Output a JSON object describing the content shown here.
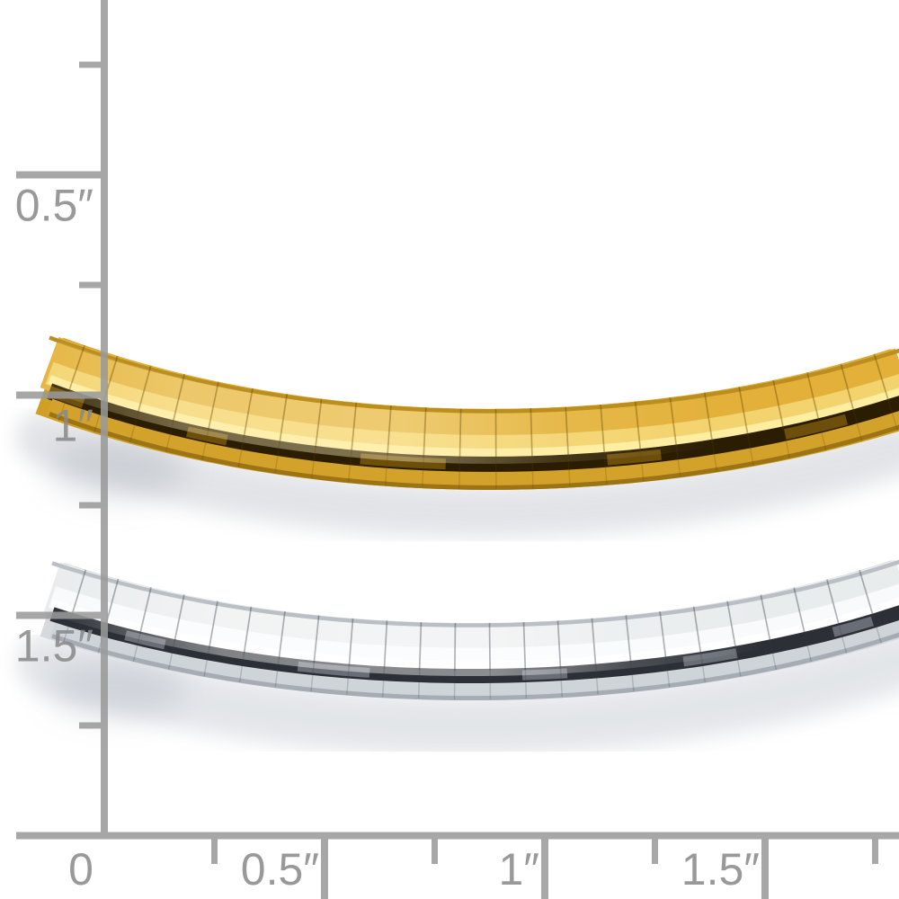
{
  "page": {
    "background": "#ffffff",
    "description": "Product photo of two omega chain necklaces (yellow gold and white gold) on a white background with a gray inch sizing ruler along the left and bottom edges."
  },
  "ruler": {
    "unit": "inches",
    "line_color": "#9a9a9a",
    "text_color": "#8a8a8a",
    "vertical_axis": {
      "labels": [
        "1.5″",
        "1″",
        "0.5″"
      ]
    },
    "horizontal_axis": {
      "labels": [
        "0",
        "0.5″",
        "1″",
        "1.5″"
      ]
    }
  },
  "chains": [
    {
      "name": "yellow-gold-omega-chain",
      "palette": {
        "base": "#cf9f26",
        "upper": "#e3b13a",
        "bright": "#f3d36e",
        "highlight": "#ffeda0",
        "dark_stripe": "#2b1d02",
        "glint": "#9a7212",
        "lower": "#d2a22b",
        "bottom_edge": "#9c7415",
        "top_edge": "#bb8e1e",
        "link_line": "#5f4200",
        "shadow": "#9aa0ac",
        "mid_glow": "#fff3c4"
      }
    },
    {
      "name": "white-gold-omega-chain",
      "palette": {
        "base": "#d6dade",
        "upper": "#e9eced",
        "bright": "#f8fafc",
        "highlight": "#ffffff",
        "dark_stripe": "#2c3036",
        "glint": "#8a9199",
        "lower": "#cfd4d9",
        "bottom_edge": "#a6acb3",
        "top_edge": "#b9bfc5",
        "link_line": "#343a44",
        "shadow": "#a6adb9",
        "mid_glow": "#ffffff"
      }
    }
  ]
}
